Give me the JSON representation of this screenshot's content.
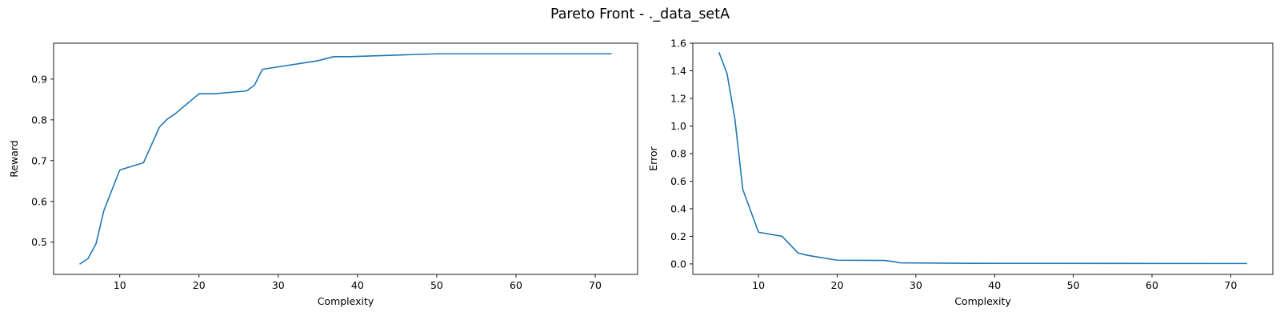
{
  "figure": {
    "suptitle": "Pareto Front - ._data_setA"
  },
  "chart_data": [
    {
      "type": "line",
      "title": "",
      "xlabel": "Complexity",
      "ylabel": "Reward",
      "xlim": [
        1.65,
        75.35
      ],
      "ylim": [
        0.421,
        0.988
      ],
      "xticks": [
        10,
        20,
        30,
        40,
        50,
        60,
        70
      ],
      "yticks": [
        0.5,
        0.6,
        0.7,
        0.8,
        0.9
      ],
      "ytick_labels": [
        "0.5",
        "0.6",
        "0.7",
        "0.8",
        "0.9"
      ],
      "grid": false,
      "color": "#1f77b4",
      "x": [
        5,
        6,
        7,
        8,
        10,
        13,
        15,
        16,
        17,
        20,
        22,
        26,
        27,
        28,
        35,
        37,
        39,
        50,
        72
      ],
      "y": [
        0.447,
        0.46,
        0.496,
        0.578,
        0.677,
        0.695,
        0.782,
        0.802,
        0.815,
        0.864,
        0.864,
        0.871,
        0.885,
        0.924,
        0.945,
        0.955,
        0.955,
        0.962,
        0.962
      ]
    },
    {
      "type": "line",
      "title": "",
      "xlabel": "Complexity",
      "ylabel": "Error",
      "xlim": [
        1.65,
        75.35
      ],
      "ylim": [
        -0.076,
        1.6
      ],
      "xticks": [
        10,
        20,
        30,
        40,
        50,
        60,
        70
      ],
      "yticks": [
        0.0,
        0.2,
        0.4,
        0.6,
        0.8,
        1.0,
        1.2,
        1.4,
        1.6
      ],
      "ytick_labels": [
        "0.0",
        "0.2",
        "0.4",
        "0.6",
        "0.8",
        "1.0",
        "1.2",
        "1.4",
        "1.6"
      ],
      "grid": false,
      "color": "#1f77b4",
      "x": [
        5,
        6,
        7,
        8,
        10,
        13,
        15,
        16,
        17,
        20,
        26,
        27,
        28,
        37,
        72
      ],
      "y": [
        1.53,
        1.38,
        1.05,
        0.54,
        0.23,
        0.2,
        0.08,
        0.065,
        0.055,
        0.027,
        0.025,
        0.018,
        0.008,
        0.004,
        0.003
      ]
    }
  ]
}
